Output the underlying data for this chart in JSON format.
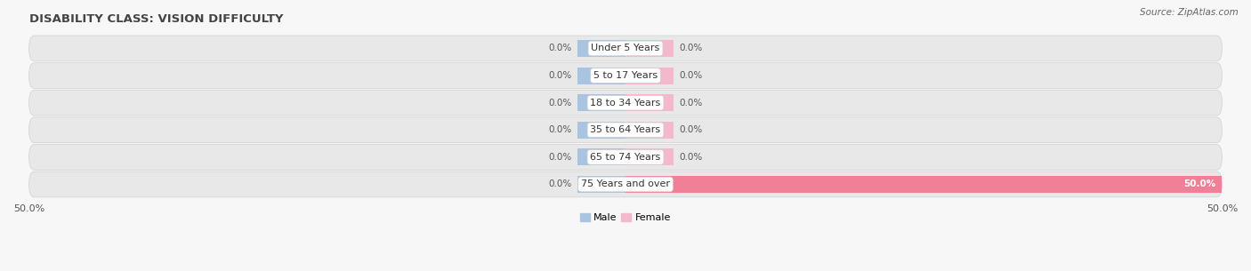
{
  "title": "DISABILITY CLASS: VISION DIFFICULTY",
  "source": "Source: ZipAtlas.com",
  "categories": [
    "Under 5 Years",
    "5 to 17 Years",
    "18 to 34 Years",
    "35 to 64 Years",
    "65 to 74 Years",
    "75 Years and over"
  ],
  "male_values": [
    0.0,
    0.0,
    0.0,
    0.0,
    0.0,
    0.0
  ],
  "female_values": [
    0.0,
    0.0,
    0.0,
    0.0,
    0.0,
    50.0
  ],
  "male_color": "#a8c4e0",
  "female_color": "#f08098",
  "female_color_light": "#f4b8cc",
  "bar_background": "#e8e8e8",
  "fig_bg": "#f7f7f7",
  "xlim": 50.0,
  "min_bar_display": 4.0,
  "bar_height": 0.62,
  "title_fontsize": 9.5,
  "source_fontsize": 7.5,
  "label_fontsize": 7.5,
  "category_fontsize": 8,
  "tick_fontsize": 8,
  "fig_width": 14.06,
  "fig_height": 3.05
}
